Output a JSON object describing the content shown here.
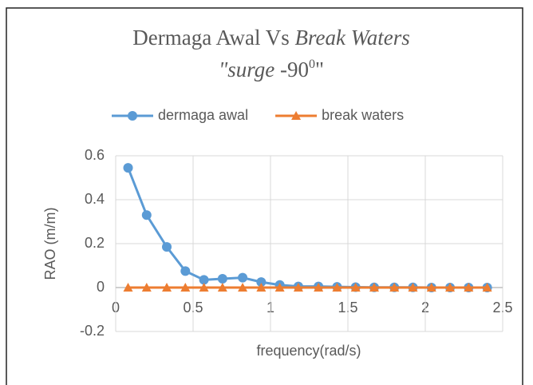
{
  "chart_data": {
    "type": "line",
    "title": [
      "Dermaga Awal Vs",
      "Break Waters"
    ],
    "subtitle": [
      "\"surge",
      "-90",
      "0",
      "\""
    ],
    "xlabel": "frequency(rad/s)",
    "ylabel": "RAO (m/m)",
    "x": [
      0.08,
      0.2,
      0.33,
      0.45,
      0.57,
      0.69,
      0.82,
      0.94,
      1.06,
      1.18,
      1.31,
      1.43,
      1.55,
      1.67,
      1.8,
      1.92,
      2.04,
      2.16,
      2.28,
      2.4
    ],
    "series": [
      {
        "name": "dermaga awal",
        "color": "#5b9bd5",
        "marker": "circle",
        "values": [
          0.545,
          0.33,
          0.185,
          0.075,
          0.035,
          0.04,
          0.045,
          0.025,
          0.012,
          0.005,
          0.005,
          0.003,
          0.002,
          0.001,
          0.001,
          0.001,
          0,
          0,
          0,
          0
        ]
      },
      {
        "name": "break waters",
        "color": "#ed7d31",
        "marker": "triangle",
        "values": [
          0,
          0,
          0,
          0,
          0,
          0,
          0,
          0,
          0,
          0,
          0,
          0,
          0,
          0,
          0,
          0,
          0,
          0,
          0,
          0
        ]
      }
    ],
    "xlim": [
      0,
      2.5
    ],
    "xticks": [
      0,
      0.5,
      1,
      1.5,
      2,
      2.5
    ],
    "ylim": [
      -0.2,
      0.6
    ],
    "yticks": [
      -0.2,
      0,
      0.2,
      0.4,
      0.6
    ],
    "grid": true,
    "legend": "top"
  }
}
